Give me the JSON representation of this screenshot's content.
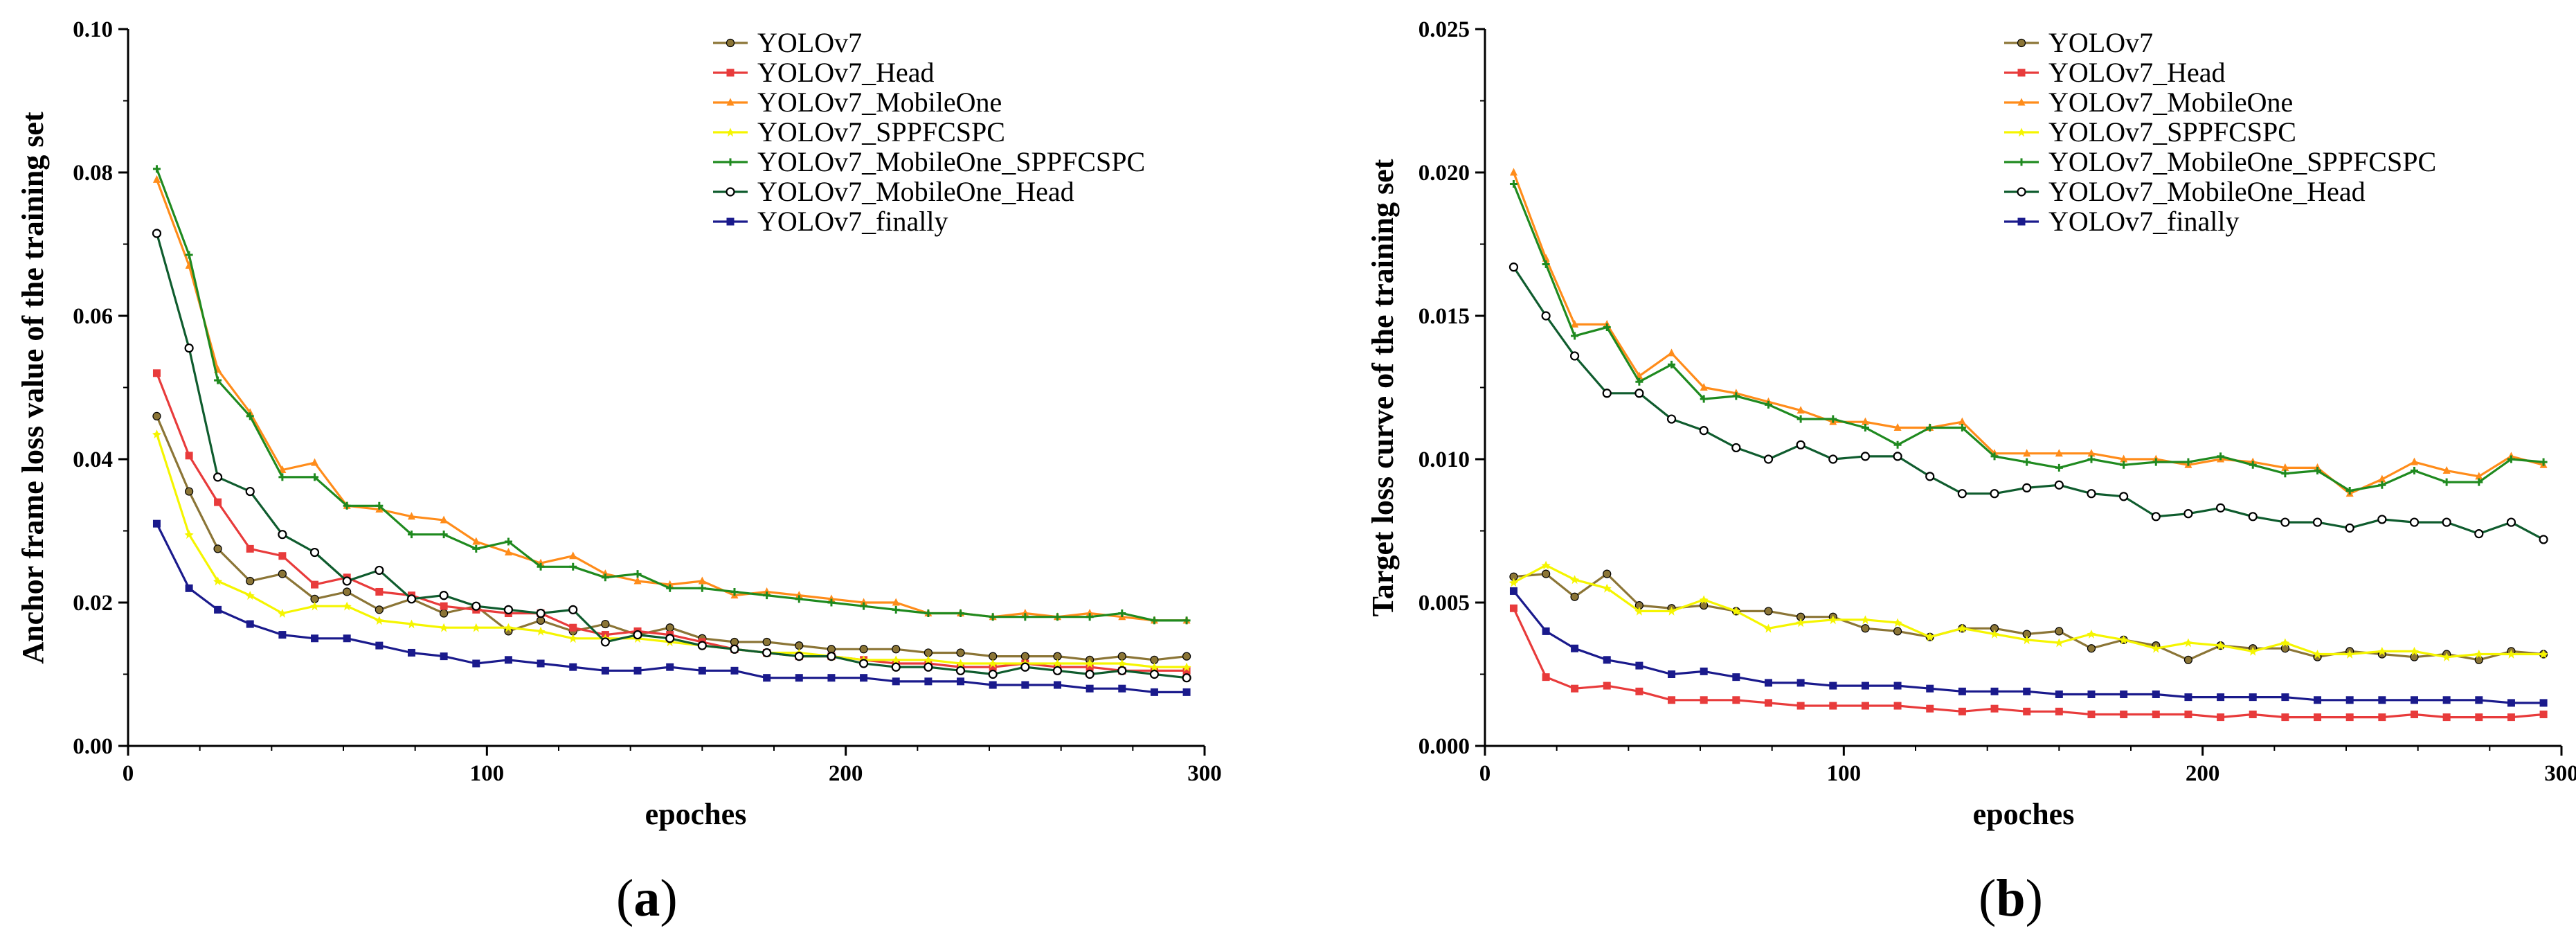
{
  "chart_data": [
    {
      "type": "line",
      "panel_label": "a",
      "title": "",
      "xlabel": "epoches",
      "ylabel": "Anchor frame loss value of the training set",
      "xlim": [
        0,
        300
      ],
      "ylim": [
        0,
        0.1
      ],
      "xticks": [
        0,
        100,
        200,
        300
      ],
      "xtick_labels": [
        "0",
        "100",
        "200",
        "300"
      ],
      "yticks": [
        0,
        0.02,
        0.04,
        0.06,
        0.08,
        0.1
      ],
      "ytick_labels": [
        "0.00",
        "0.02",
        "0.04",
        "0.06",
        "0.08",
        "0.10"
      ],
      "legend_position": "top-right",
      "x": [
        8,
        17,
        25,
        34,
        43,
        52,
        61,
        70,
        79,
        88,
        97,
        106,
        115,
        124,
        133,
        142,
        151,
        160,
        169,
        178,
        187,
        196,
        205,
        214,
        223,
        232,
        241,
        250,
        259,
        268,
        277,
        286,
        295
      ],
      "series": [
        {
          "name": "YOLOv7",
          "color": "#8B7536",
          "marker": "circle",
          "values": [
            0.046,
            0.0355,
            0.0275,
            0.023,
            0.024,
            0.0205,
            0.0215,
            0.019,
            0.0205,
            0.0185,
            0.0195,
            0.016,
            0.0175,
            0.016,
            0.017,
            0.0155,
            0.0165,
            0.015,
            0.0145,
            0.0145,
            0.014,
            0.0135,
            0.0135,
            0.0135,
            0.013,
            0.013,
            0.0125,
            0.0125,
            0.0125,
            0.012,
            0.0125,
            0.012,
            0.0125
          ]
        },
        {
          "name": "YOLOv7_Head",
          "color": "#E83B3B",
          "marker": "square",
          "values": [
            0.052,
            0.0405,
            0.034,
            0.0275,
            0.0265,
            0.0225,
            0.0235,
            0.0215,
            0.021,
            0.0195,
            0.019,
            0.0185,
            0.0185,
            0.0165,
            0.0155,
            0.016,
            0.0155,
            0.0145,
            0.0135,
            0.013,
            0.0125,
            0.0125,
            0.012,
            0.0115,
            0.0115,
            0.011,
            0.011,
            0.0115,
            0.011,
            0.011,
            0.0105,
            0.0105,
            0.0105
          ]
        },
        {
          "name": "YOLOv7_MobileOne",
          "color": "#FF8C1A",
          "marker": "triangle",
          "values": [
            0.079,
            0.067,
            0.0525,
            0.0465,
            0.0385,
            0.0395,
            0.0335,
            0.033,
            0.032,
            0.0315,
            0.0285,
            0.027,
            0.0255,
            0.0265,
            0.024,
            0.023,
            0.0225,
            0.023,
            0.021,
            0.0215,
            0.021,
            0.0205,
            0.02,
            0.02,
            0.0185,
            0.0185,
            0.018,
            0.0185,
            0.018,
            0.0185,
            0.018,
            0.0175,
            0.0175
          ]
        },
        {
          "name": "YOLOv7_SPPFCSPC",
          "color": "#F5F500",
          "marker": "star",
          "values": [
            0.0435,
            0.0295,
            0.023,
            0.021,
            0.0185,
            0.0195,
            0.0195,
            0.0175,
            0.017,
            0.0165,
            0.0165,
            0.0165,
            0.016,
            0.015,
            0.015,
            0.015,
            0.0145,
            0.014,
            0.0135,
            0.013,
            0.013,
            0.0125,
            0.012,
            0.012,
            0.012,
            0.0115,
            0.0115,
            0.0115,
            0.0115,
            0.0115,
            0.0115,
            0.011,
            0.011
          ]
        },
        {
          "name": "YOLOv7_MobileOne_SPPFCSPC",
          "color": "#1F8A1F",
          "marker": "cross",
          "values": [
            0.0805,
            0.0685,
            0.051,
            0.046,
            0.0375,
            0.0375,
            0.0335,
            0.0335,
            0.0295,
            0.0295,
            0.0275,
            0.0285,
            0.025,
            0.025,
            0.0235,
            0.024,
            0.022,
            0.022,
            0.0215,
            0.021,
            0.0205,
            0.02,
            0.0195,
            0.019,
            0.0185,
            0.0185,
            0.018,
            0.018,
            0.018,
            0.018,
            0.0185,
            0.0175,
            0.0175
          ]
        },
        {
          "name": "YOLOv7_MobileOne_Head",
          "color": "#0F5C2E",
          "marker": "circle-open",
          "values": [
            0.0715,
            0.0555,
            0.0375,
            0.0355,
            0.0295,
            0.027,
            0.023,
            0.0245,
            0.0205,
            0.021,
            0.0195,
            0.019,
            0.0185,
            0.019,
            0.0145,
            0.0155,
            0.015,
            0.014,
            0.0135,
            0.013,
            0.0125,
            0.0125,
            0.0115,
            0.011,
            0.011,
            0.0105,
            0.01,
            0.011,
            0.0105,
            0.01,
            0.0105,
            0.01,
            0.0095
          ]
        },
        {
          "name": "YOLOv7_finally",
          "color": "#1A1A8C",
          "marker": "square",
          "values": [
            0.031,
            0.022,
            0.019,
            0.017,
            0.0155,
            0.015,
            0.015,
            0.014,
            0.013,
            0.0125,
            0.0115,
            0.012,
            0.0115,
            0.011,
            0.0105,
            0.0105,
            0.011,
            0.0105,
            0.0105,
            0.0095,
            0.0095,
            0.0095,
            0.0095,
            0.009,
            0.009,
            0.009,
            0.0085,
            0.0085,
            0.0085,
            0.008,
            0.008,
            0.0075,
            0.0075
          ]
        }
      ]
    },
    {
      "type": "line",
      "panel_label": "b",
      "title": "",
      "xlabel": "epoches",
      "ylabel": "Target loss curve of the training set",
      "xlim": [
        0,
        300
      ],
      "ylim": [
        0,
        0.025
      ],
      "xticks": [
        0,
        100,
        200,
        300
      ],
      "xtick_labels": [
        "0",
        "100",
        "200",
        "300"
      ],
      "yticks": [
        0,
        0.005,
        0.01,
        0.015,
        0.02,
        0.025
      ],
      "ytick_labels": [
        "0.000",
        "0.005",
        "0.010",
        "0.015",
        "0.020",
        "0.025"
      ],
      "legend_position": "top-right",
      "x": [
        8,
        17,
        25,
        34,
        43,
        52,
        61,
        70,
        79,
        88,
        97,
        106,
        115,
        124,
        133,
        142,
        151,
        160,
        169,
        178,
        187,
        196,
        205,
        214,
        223,
        232,
        241,
        250,
        259,
        268,
        277,
        286,
        295
      ],
      "series": [
        {
          "name": "YOLOv7",
          "color": "#8B7536",
          "marker": "circle",
          "values": [
            0.0059,
            0.006,
            0.0052,
            0.006,
            0.0049,
            0.0048,
            0.0049,
            0.0047,
            0.0047,
            0.0045,
            0.0045,
            0.0041,
            0.004,
            0.0038,
            0.0041,
            0.0041,
            0.0039,
            0.004,
            0.0034,
            0.0037,
            0.0035,
            0.003,
            0.0035,
            0.0034,
            0.0034,
            0.0031,
            0.0033,
            0.0032,
            0.0031,
            0.0032,
            0.003,
            0.0033,
            0.0032
          ]
        },
        {
          "name": "YOLOv7_Head",
          "color": "#E83B3B",
          "marker": "square",
          "values": [
            0.0048,
            0.0024,
            0.002,
            0.0021,
            0.0019,
            0.0016,
            0.0016,
            0.0016,
            0.0015,
            0.0014,
            0.0014,
            0.0014,
            0.0014,
            0.0013,
            0.0012,
            0.0013,
            0.0012,
            0.0012,
            0.0011,
            0.0011,
            0.0011,
            0.0011,
            0.001,
            0.0011,
            0.001,
            0.001,
            0.001,
            0.001,
            0.0011,
            0.001,
            0.001,
            0.001,
            0.0011
          ]
        },
        {
          "name": "YOLOv7_MobileOne",
          "color": "#FF8C1A",
          "marker": "triangle",
          "values": [
            0.02,
            0.017,
            0.0147,
            0.0147,
            0.0129,
            0.0137,
            0.0125,
            0.0123,
            0.012,
            0.0117,
            0.0113,
            0.0113,
            0.0111,
            0.0111,
            0.0113,
            0.0102,
            0.0102,
            0.0102,
            0.0102,
            0.01,
            0.01,
            0.0098,
            0.01,
            0.0099,
            0.0097,
            0.0097,
            0.0088,
            0.0093,
            0.0099,
            0.0096,
            0.0094,
            0.0101,
            0.0098
          ]
        },
        {
          "name": "YOLOv7_SPPFCSPC",
          "color": "#F5F500",
          "marker": "star",
          "values": [
            0.0057,
            0.0063,
            0.0058,
            0.0055,
            0.0047,
            0.0047,
            0.0051,
            0.0047,
            0.0041,
            0.0043,
            0.0044,
            0.0044,
            0.0043,
            0.0038,
            0.0041,
            0.0039,
            0.0037,
            0.0036,
            0.0039,
            0.0037,
            0.0034,
            0.0036,
            0.0035,
            0.0033,
            0.0036,
            0.0032,
            0.0032,
            0.0033,
            0.0033,
            0.0031,
            0.0032,
            0.0032,
            0.0032
          ]
        },
        {
          "name": "YOLOv7_MobileOne_SPPFCSPC",
          "color": "#1F8A1F",
          "marker": "cross",
          "values": [
            0.0196,
            0.0168,
            0.0143,
            0.0146,
            0.0127,
            0.0133,
            0.0121,
            0.0122,
            0.0119,
            0.0114,
            0.0114,
            0.0111,
            0.0105,
            0.0111,
            0.0111,
            0.0101,
            0.0099,
            0.0097,
            0.01,
            0.0098,
            0.0099,
            0.0099,
            0.0101,
            0.0098,
            0.0095,
            0.0096,
            0.0089,
            0.0091,
            0.0096,
            0.0092,
            0.0092,
            0.01,
            0.0099
          ]
        },
        {
          "name": "YOLOv7_MobileOne_Head",
          "color": "#0F5C2E",
          "marker": "circle-open",
          "values": [
            0.0167,
            0.015,
            0.0136,
            0.0123,
            0.0123,
            0.0114,
            0.011,
            0.0104,
            0.01,
            0.0105,
            0.01,
            0.0101,
            0.0101,
            0.0094,
            0.0088,
            0.0088,
            0.009,
            0.0091,
            0.0088,
            0.0087,
            0.008,
            0.0081,
            0.0083,
            0.008,
            0.0078,
            0.0078,
            0.0076,
            0.0079,
            0.0078,
            0.0078,
            0.0074,
            0.0078,
            0.0072
          ]
        },
        {
          "name": "YOLOv7_finally",
          "color": "#1A1A8C",
          "marker": "square",
          "values": [
            0.0054,
            0.004,
            0.0034,
            0.003,
            0.0028,
            0.0025,
            0.0026,
            0.0024,
            0.0022,
            0.0022,
            0.0021,
            0.0021,
            0.0021,
            0.002,
            0.0019,
            0.0019,
            0.0019,
            0.0018,
            0.0018,
            0.0018,
            0.0018,
            0.0017,
            0.0017,
            0.0017,
            0.0017,
            0.0016,
            0.0016,
            0.0016,
            0.0016,
            0.0016,
            0.0016,
            0.0015,
            0.0015
          ]
        }
      ]
    }
  ]
}
